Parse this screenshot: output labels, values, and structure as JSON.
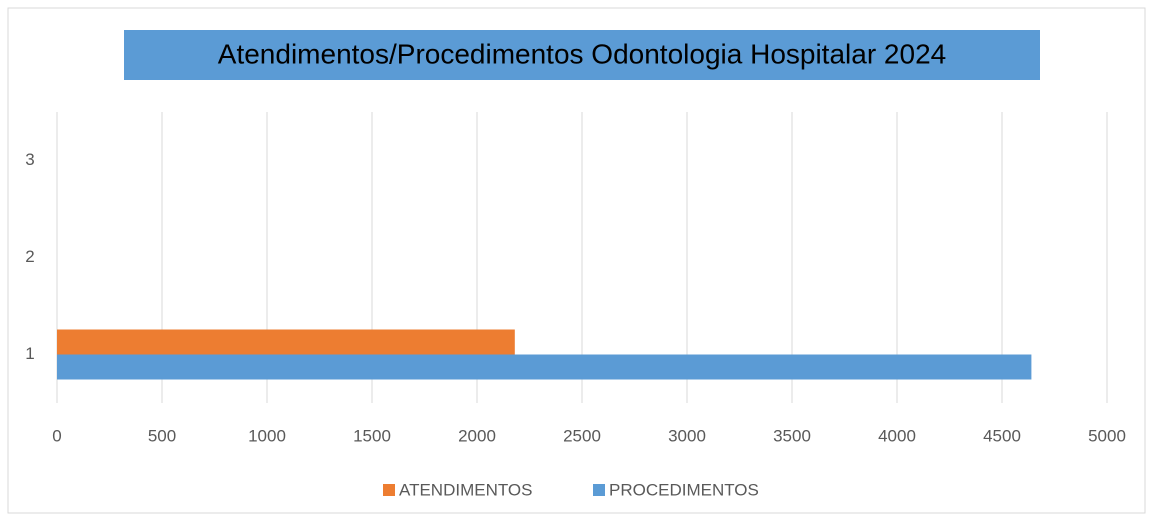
{
  "chart_data": {
    "type": "hbar",
    "title": "Atendimentos/Procedimentos  Odontologia Hospitalar 2024",
    "categories": [
      "1",
      "2",
      "3"
    ],
    "series": [
      {
        "name": "ATENDIMENTOS",
        "color": "#ed7d31",
        "values": [
          2180,
          null,
          null
        ]
      },
      {
        "name": "PROCEDIMENTOS",
        "color": "#5b9bd5",
        "values": [
          4640,
          null,
          null
        ]
      }
    ],
    "xlim": [
      0,
      5000
    ],
    "xticks": [
      0,
      500,
      1000,
      1500,
      2000,
      2500,
      3000,
      3500,
      4000,
      4500,
      5000
    ],
    "grid": true,
    "legend": "bottom"
  }
}
